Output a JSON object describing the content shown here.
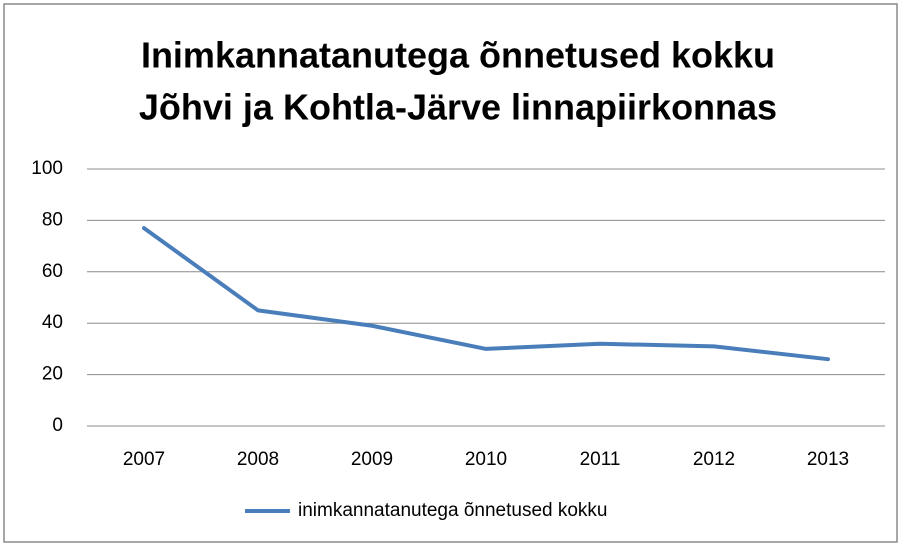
{
  "chart_data": {
    "type": "line",
    "title": [
      "Inimkannatanutega õnnetused kokku",
      "Jõhvi ja Kohtla-Järve linnapiirkonnas"
    ],
    "categories": [
      "2007",
      "2008",
      "2009",
      "2010",
      "2011",
      "2012",
      "2013"
    ],
    "series": [
      {
        "name": "inimkannatanutega õnnetused kokku",
        "color": "#4a7ebb",
        "values": [
          77,
          45,
          39,
          30,
          32,
          31,
          26
        ]
      }
    ],
    "ylim": [
      0,
      100
    ],
    "yticks": [
      0,
      20,
      40,
      60,
      80,
      100
    ],
    "grid": true,
    "legend": "bottom"
  }
}
